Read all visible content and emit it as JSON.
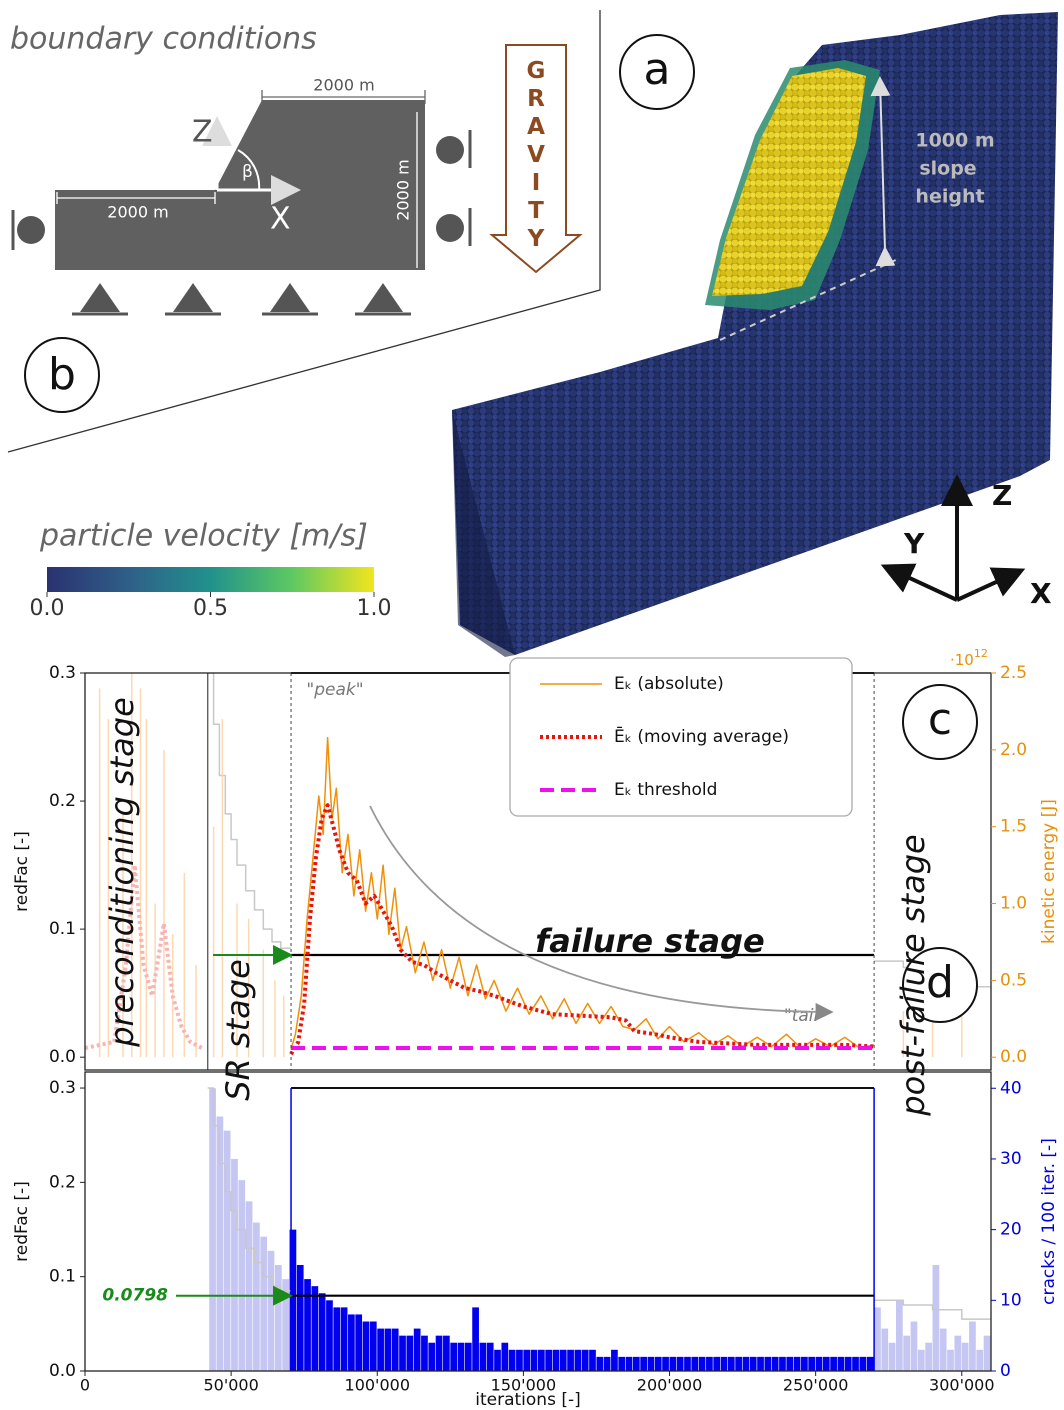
{
  "panel_b": {
    "title": "boundary conditions",
    "label": "b",
    "dim_top": "2000 m",
    "dim_left": "2000 m",
    "dim_right": "2000 m",
    "axis_z": "Z",
    "axis_x": "X",
    "angle": "β",
    "gravity": "GRAVITY"
  },
  "panel_a": {
    "label": "a",
    "slope_height": [
      "1000 m",
      "slope",
      "height"
    ],
    "axes": {
      "z": "Z",
      "y": "Y",
      "x": "X"
    }
  },
  "colorbar": {
    "title": "particle velocity [m/s]",
    "lim": [
      0,
      1
    ],
    "ticks": [
      {
        "value": 0,
        "label": "0.0"
      },
      {
        "value": 0.5,
        "label": "0.5"
      },
      {
        "value": 1,
        "label": "1.0"
      }
    ]
  },
  "stages": [
    {
      "name": "preconditioning stage",
      "x": [
        0,
        42000
      ]
    },
    {
      "name": "SR stage",
      "x": [
        42000,
        70500
      ]
    },
    {
      "name": "failure stage",
      "x": [
        70500,
        270000
      ]
    },
    {
      "name": "post-failure stage",
      "x": [
        270000,
        310000
      ]
    }
  ],
  "chart_data": [
    {
      "type": "line",
      "label": "c",
      "xlim": [
        0,
        310000
      ],
      "ylim": [
        -0.01,
        0.3
      ],
      "yticks": [
        {
          "value": 0,
          "label": "0.0"
        },
        {
          "value": 0.1,
          "label": "0.1"
        },
        {
          "value": 0.2,
          "label": "0.2"
        },
        {
          "value": 0.3,
          "label": "0.3"
        }
      ],
      "ylabel": "redFac [-]",
      "y2lim": [
        -0.083,
        2.5
      ],
      "y2ticks": [
        {
          "value": 0,
          "label": "0.0"
        },
        {
          "value": 0.5,
          "label": "0.5"
        },
        {
          "value": 1,
          "label": "1.0"
        },
        {
          "value": 1.5,
          "label": "1.5"
        },
        {
          "value": 2,
          "label": "2.0"
        },
        {
          "value": 2.5,
          "label": "2.5"
        }
      ],
      "y2label": "kinetic energy [J]",
      "y2_offset": {
        "base": "·10",
        "exponent": "12"
      },
      "y2_color": "#e8900a",
      "annotations": [
        "\"peak\"",
        "\"tail\""
      ],
      "series": [
        {
          "color": "#c8c8c8",
          "axis": "y",
          "x": [
            42000,
            44000,
            44000,
            46000,
            46000,
            48000,
            48000,
            50000,
            50000,
            52000,
            52000,
            55000,
            55000,
            58000,
            58000,
            61000,
            61000,
            64000,
            64000,
            67000,
            67000,
            70500,
            270000,
            270000,
            280000,
            280000,
            290000,
            290000,
            300000,
            300000,
            310000
          ],
          "values": [
            0.3,
            0.3,
            0.26,
            0.26,
            0.22,
            0.22,
            0.19,
            0.19,
            0.17,
            0.17,
            0.15,
            0.15,
            0.13,
            0.13,
            0.115,
            0.115,
            0.1,
            0.1,
            0.09,
            0.09,
            0.085,
            0.085,
            null,
            0.075,
            0.075,
            0.07,
            0.07,
            0.065,
            0.065,
            0.055,
            0.055
          ]
        },
        {
          "color": "#000000",
          "axis": "y",
          "x": [
            70500,
            270000
          ],
          "values": [
            0.0798,
            0.0798
          ]
        },
        {
          "style": "spikes",
          "color": "#fcd9b0",
          "axis": "y2",
          "x": [
            5000,
            8000,
            13000,
            16000,
            19000,
            21000,
            24000,
            27000,
            30000,
            34000,
            38000,
            44000,
            47000,
            52000,
            56000,
            61000,
            65000,
            68000,
            280000,
            290000,
            300000
          ],
          "values": [
            2.4,
            2.2,
            1.6,
            2.5,
            2.4,
            2.2,
            1.0,
            2.0,
            0.8,
            1.2,
            0.6,
            1.5,
            2.2,
            1.0,
            0.9,
            0.7,
            0.5,
            0.4,
            0.3,
            0.4,
            0.5
          ]
        },
        {
          "color": "#f7b4b4",
          "axis": "y2",
          "dash": "dot",
          "x": [
            0,
            10000,
            14000,
            17000,
            20000,
            23000,
            27000,
            30000,
            33000,
            36000,
            40000
          ],
          "values": [
            0.06,
            0.1,
            0.6,
            1.25,
            0.6,
            0.4,
            0.87,
            0.4,
            0.2,
            0.1,
            0.06
          ]
        },
        {
          "name": "Eₖ (absolute)",
          "color": "#f0900a",
          "axis": "y2",
          "x": [
            70500,
            72000,
            74000,
            76000,
            78000,
            80000,
            81500,
            83000,
            84500,
            86000,
            88000,
            90000,
            92000,
            94000,
            96000,
            98000,
            100000,
            102000,
            104000,
            106000,
            108000,
            110000,
            113000,
            116000,
            119000,
            122000,
            125000,
            128000,
            131000,
            134000,
            137000,
            140000,
            144000,
            148000,
            152000,
            156000,
            160000,
            164000,
            168000,
            172000,
            176000,
            180000,
            184000,
            188000,
            192000,
            196000,
            200000,
            205000,
            210000,
            215000,
            220000,
            225000,
            230000,
            235000,
            240000,
            245000,
            250000,
            255000,
            260000,
            265000,
            270000
          ],
          "values": [
            0.05,
            0.15,
            0.4,
            0.9,
            1.3,
            1.7,
            1.45,
            2.08,
            1.55,
            1.75,
            1.2,
            1.45,
            1.05,
            1.35,
            0.95,
            1.2,
            0.9,
            1.25,
            0.8,
            1.1,
            0.7,
            0.85,
            0.55,
            0.75,
            0.5,
            0.7,
            0.45,
            0.65,
            0.4,
            0.6,
            0.38,
            0.5,
            0.3,
            0.45,
            0.28,
            0.4,
            0.25,
            0.38,
            0.22,
            0.35,
            0.22,
            0.33,
            0.2,
            0.18,
            0.25,
            0.12,
            0.2,
            0.1,
            0.16,
            0.08,
            0.14,
            0.07,
            0.13,
            0.07,
            0.15,
            0.06,
            0.12,
            0.07,
            0.13,
            0.06,
            0.08
          ]
        },
        {
          "name": "Ēₖ (moving average)",
          "color": "#e8150a",
          "axis": "y2",
          "dash": "dot",
          "x": [
            70500,
            73000,
            75000,
            77000,
            79000,
            81000,
            83000,
            85000,
            87000,
            90000,
            93000,
            96000,
            99000,
            102000,
            105000,
            108000,
            112000,
            116000,
            120000,
            125000,
            130000,
            135000,
            140000,
            150000,
            160000,
            170000,
            180000,
            185000,
            188000,
            195000,
            200000,
            210000,
            220000,
            230000,
            240000,
            250000,
            260000,
            270000
          ],
          "values": [
            0.02,
            0.1,
            0.35,
            0.9,
            1.3,
            1.55,
            1.64,
            1.5,
            1.35,
            1.2,
            1.15,
            1.0,
            1.05,
            0.95,
            0.85,
            0.7,
            0.62,
            0.6,
            0.55,
            0.5,
            0.45,
            0.43,
            0.4,
            0.33,
            0.28,
            0.27,
            0.26,
            0.24,
            0.17,
            0.15,
            0.13,
            0.1,
            0.09,
            0.08,
            0.08,
            0.08,
            0.08,
            0.07
          ]
        },
        {
          "name": "Eₖ threshold",
          "color": "#ee10ee",
          "axis": "y2",
          "dash": "dash",
          "x": [
            70500,
            270000
          ],
          "values": [
            0.06,
            0.06
          ]
        }
      ]
    },
    {
      "type": "histogram",
      "label": "d",
      "xlim": [
        0,
        310000
      ],
      "ylim": [
        0,
        0.317
      ],
      "xticks": [
        0,
        {
          "value": 50000,
          "label": "50'000"
        },
        {
          "value": 100000,
          "label": "100'000"
        },
        {
          "value": 150000,
          "label": "150'000"
        },
        {
          "value": 200000,
          "label": "200'000"
        },
        {
          "value": 250000,
          "label": "250'000"
        },
        {
          "value": 300000,
          "label": "300'000"
        }
      ],
      "xlabel": "iterations [-]",
      "yticks": [
        {
          "value": 0,
          "label": "0.0"
        },
        {
          "value": 0.1,
          "label": "0.1"
        },
        {
          "value": 0.2,
          "label": "0.2"
        },
        {
          "value": 0.3,
          "label": "0.3"
        }
      ],
      "ylabel": "redFac [-]",
      "y2lim": [
        0,
        42.3
      ],
      "y2ticks": [
        0,
        10,
        20,
        30,
        40
      ],
      "y2label": "cracks / 100 iter. [-]",
      "y2_color": "#0000dd",
      "series": [
        {
          "style": "bars",
          "color": "#0000ee",
          "faded_color": "#c6c6f2",
          "axis": "y2",
          "bins": [
            42500,
            45000,
            47500,
            50000,
            52500,
            55000,
            57500,
            60000,
            62500,
            65000,
            67500,
            70000,
            72500,
            75000,
            77500,
            80000,
            82500,
            85000,
            87500,
            90000,
            92500,
            95000,
            97500,
            100000,
            102500,
            105000,
            107500,
            110000,
            112500,
            115000,
            117500,
            120000,
            122500,
            125000,
            127500,
            130000,
            132500,
            135000,
            137500,
            140000,
            142500,
            145000,
            147500,
            150000,
            152500,
            155000,
            157500,
            160000,
            162500,
            165000,
            167500,
            170000,
            172500,
            175000,
            177500,
            180000,
            182500,
            185000,
            187500,
            190000,
            192500,
            195000,
            197500,
            200000,
            202500,
            205000,
            207500,
            210000,
            212500,
            215000,
            217500,
            220000,
            222500,
            225000,
            227500,
            230000,
            232500,
            235000,
            237500,
            240000,
            242500,
            245000,
            247500,
            250000,
            252500,
            255000,
            257500,
            260000,
            262500,
            265000,
            267500,
            270000,
            272500,
            275000,
            277500,
            280000,
            282500,
            285000,
            287500,
            290000,
            292500,
            295000,
            297500,
            300000,
            302500,
            305000,
            307500,
            310000
          ],
          "values": [
            40,
            36,
            34,
            30,
            27,
            24,
            21,
            19,
            17,
            15,
            13,
            20,
            15,
            13,
            12,
            11,
            10,
            9,
            9,
            8,
            8,
            7,
            7,
            6,
            6,
            6,
            5,
            5,
            6,
            5,
            4,
            5,
            5,
            4,
            4,
            4,
            9,
            4,
            4,
            3,
            4,
            3,
            3,
            3,
            3,
            3,
            3,
            3,
            3,
            3,
            3,
            3,
            3,
            2,
            2,
            3,
            2,
            2,
            2,
            2,
            2,
            2,
            2,
            2,
            2,
            2,
            2,
            2,
            2,
            2,
            2,
            2,
            2,
            2,
            2,
            2,
            2,
            2,
            2,
            2,
            2,
            2,
            2,
            2,
            2,
            2,
            2,
            2,
            2,
            2,
            2,
            9,
            6,
            4,
            10,
            5,
            7,
            3,
            4,
            15,
            6,
            3,
            5,
            4,
            7,
            3,
            5
          ]
        },
        {
          "color": "#c8c8c8",
          "axis": "y",
          "x": [
            42000,
            44000,
            44000,
            46000,
            46000,
            48000,
            48000,
            50000,
            50000,
            52000,
            52000,
            55000,
            55000,
            58000,
            58000,
            61000,
            61000,
            64000,
            64000,
            67000,
            67000,
            70500,
            270000,
            270000,
            280000,
            280000,
            290000,
            290000,
            300000,
            300000,
            310000
          ],
          "values": [
            0.3,
            0.3,
            0.26,
            0.26,
            0.22,
            0.22,
            0.19,
            0.19,
            0.17,
            0.17,
            0.15,
            0.15,
            0.13,
            0.13,
            0.115,
            0.115,
            0.1,
            0.1,
            0.09,
            0.09,
            0.085,
            0.085,
            null,
            0.075,
            0.075,
            0.07,
            0.07,
            0.065,
            0.065,
            0.055,
            0.055
          ]
        },
        {
          "color": "#000000",
          "axis": "y",
          "x": [
            70500,
            270000
          ],
          "values": [
            0.0798,
            0.0798
          ]
        }
      ]
    }
  ]
}
